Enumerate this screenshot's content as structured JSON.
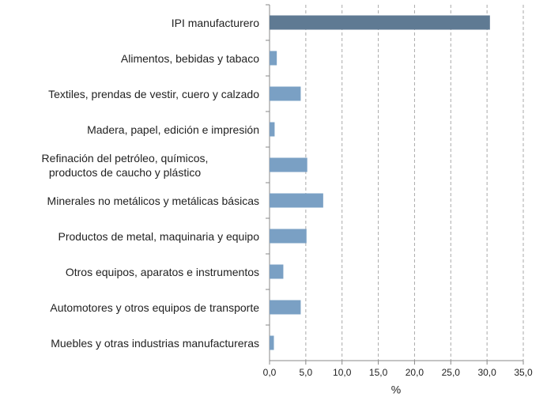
{
  "chart_data": {
    "type": "bar",
    "orientation": "horizontal",
    "categories": [
      "IPI manufacturero",
      "Alimentos, bebidas y tabaco",
      "Textiles, prendas de vestir, cuero y calzado",
      "Madera, papel, edición e impresión",
      "Refinación del petróleo, químicos,\nproductos de caucho y plástico",
      "Minerales no metálicos y metálicas básicas",
      "Productos de metal, maquinaria y equipo",
      "Otros equipos, aparatos e instrumentos",
      "Automotores y otros equipos de transporte",
      "Muebles y otras industrias manufactureras"
    ],
    "values": [
      30.4,
      1.0,
      4.3,
      0.7,
      5.2,
      7.4,
      5.1,
      1.9,
      4.3,
      0.6
    ],
    "colors": [
      "#5f7a93",
      "#7aa0c4",
      "#7aa0c4",
      "#7aa0c4",
      "#7aa0c4",
      "#7aa0c4",
      "#7aa0c4",
      "#7aa0c4",
      "#7aa0c4",
      "#7aa0c4"
    ],
    "xlabel": "%",
    "xlim": [
      0,
      35
    ],
    "xticks": [
      {
        "value": 0,
        "label": "0,0"
      },
      {
        "value": 5,
        "label": "5,0"
      },
      {
        "value": 10,
        "label": "10,0"
      },
      {
        "value": 15,
        "label": "15,0"
      },
      {
        "value": 20,
        "label": "20,0"
      },
      {
        "value": 25,
        "label": "25,0"
      },
      {
        "value": 30,
        "label": "30,0"
      },
      {
        "value": 35,
        "label": "35,0"
      }
    ],
    "grid": true
  }
}
